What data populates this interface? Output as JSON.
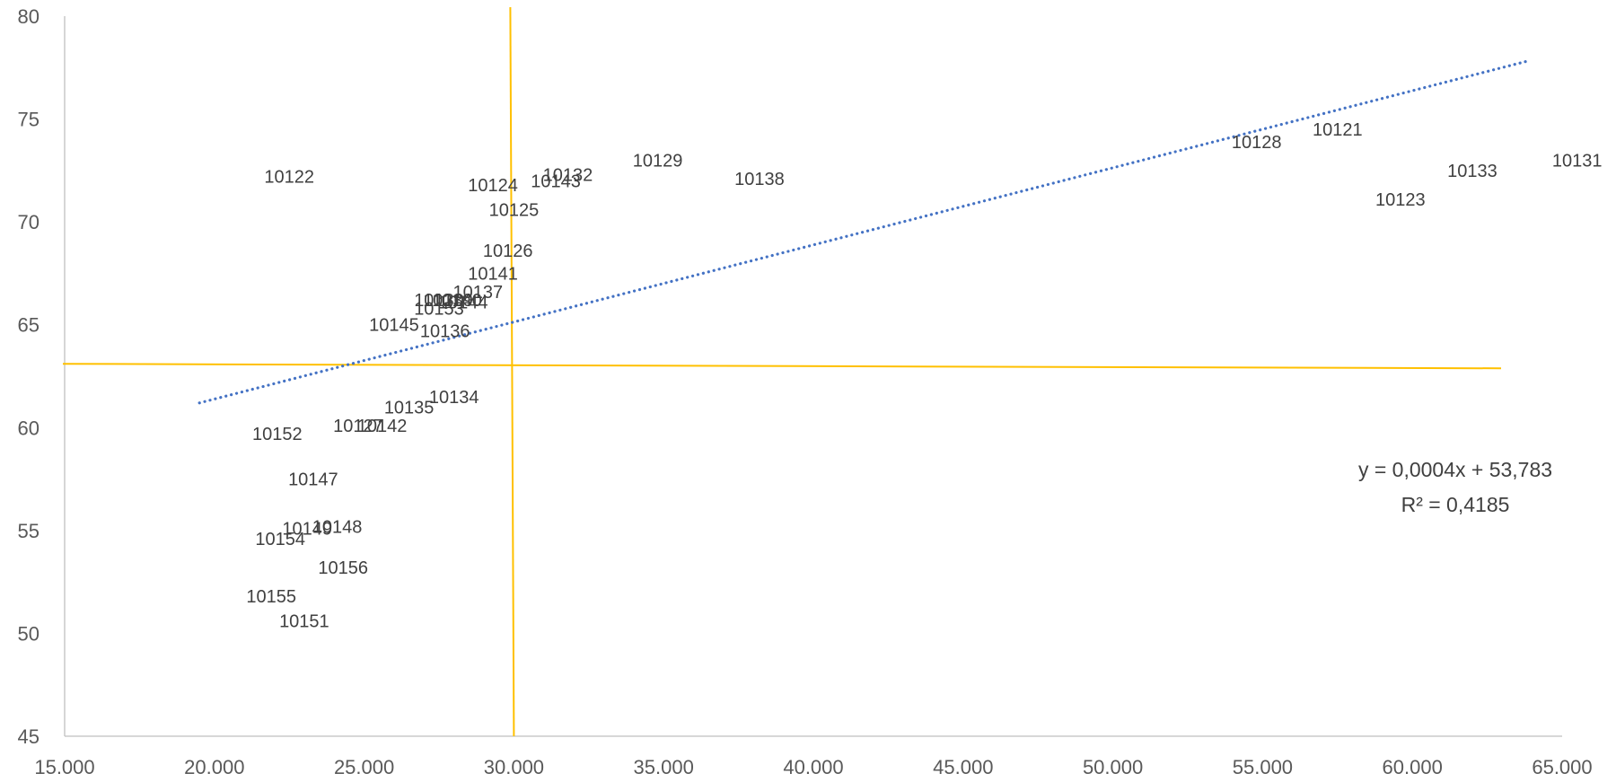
{
  "chart_data": {
    "type": "scatter",
    "title": "",
    "xlabel": "",
    "ylabel": "",
    "xlim": [
      15000,
      65000
    ],
    "ylim": [
      45,
      80
    ],
    "x_ticks": [
      "15.000",
      "20.000",
      "25.000",
      "30.000",
      "35.000",
      "40.000",
      "45.000",
      "50.000",
      "55.000",
      "60.000",
      "65.000"
    ],
    "y_ticks": [
      "45",
      "50",
      "55",
      "60",
      "65",
      "70",
      "75",
      "80"
    ],
    "gridlines": false,
    "markers_visible": false,
    "points": [
      {
        "label": "10122",
        "x": 22500,
        "y": 72.2
      },
      {
        "label": "10124",
        "x": 29300,
        "y": 71.8
      },
      {
        "label": "10132",
        "x": 31800,
        "y": 72.3
      },
      {
        "label": "10143",
        "x": 31400,
        "y": 72.0
      },
      {
        "label": "10129",
        "x": 34800,
        "y": 73.0
      },
      {
        "label": "10138",
        "x": 38200,
        "y": 72.1
      },
      {
        "label": "10125",
        "x": 30000,
        "y": 70.6
      },
      {
        "label": "10126",
        "x": 29800,
        "y": 68.6
      },
      {
        "label": "10141",
        "x": 29300,
        "y": 67.5
      },
      {
        "label": "10137",
        "x": 28800,
        "y": 66.6
      },
      {
        "label": "10130",
        "x": 27500,
        "y": 66.2
      },
      {
        "label": "10139",
        "x": 27800,
        "y": 66.2
      },
      {
        "label": "10140",
        "x": 28100,
        "y": 66.2
      },
      {
        "label": "10144",
        "x": 28300,
        "y": 66.1
      },
      {
        "label": "10153",
        "x": 27500,
        "y": 65.8
      },
      {
        "label": "10145",
        "x": 26000,
        "y": 65.0
      },
      {
        "label": "10136",
        "x": 27700,
        "y": 64.7
      },
      {
        "label": "10134",
        "x": 28000,
        "y": 61.5
      },
      {
        "label": "10135",
        "x": 26500,
        "y": 61.0
      },
      {
        "label": "10127",
        "x": 24800,
        "y": 60.1
      },
      {
        "label": "10142",
        "x": 25600,
        "y": 60.1
      },
      {
        "label": "10152",
        "x": 22100,
        "y": 59.7
      },
      {
        "label": "10147",
        "x": 23300,
        "y": 57.5
      },
      {
        "label": "10149",
        "x": 23100,
        "y": 55.1
      },
      {
        "label": "10148",
        "x": 24100,
        "y": 55.2
      },
      {
        "label": "10154",
        "x": 22200,
        "y": 54.6
      },
      {
        "label": "10156",
        "x": 24300,
        "y": 53.2
      },
      {
        "label": "10155",
        "x": 21900,
        "y": 51.8
      },
      {
        "label": "10151",
        "x": 23000,
        "y": 50.6
      },
      {
        "label": "10128",
        "x": 54800,
        "y": 73.9
      },
      {
        "label": "10121",
        "x": 57500,
        "y": 74.5
      },
      {
        "label": "10123",
        "x": 59600,
        "y": 71.1
      },
      {
        "label": "10133",
        "x": 62000,
        "y": 72.5
      },
      {
        "label": "10131",
        "x": 65500,
        "y": 73.0
      }
    ],
    "reference_lines": [
      {
        "orientation": "vertical",
        "x": 30000,
        "color": "#FFC000"
      },
      {
        "orientation": "horizontal",
        "y": 63.1,
        "color": "#FFC000"
      }
    ],
    "trendline": {
      "type": "linear",
      "style": "dotted",
      "color": "#4472C4",
      "slope": 0.0004,
      "intercept": 53.783,
      "x_range": [
        19500,
        63800
      ],
      "equation": "y = 0,0004x + 53,783",
      "r_squared": "R² = 0,4185"
    },
    "axis_color": "#BFBFBF",
    "text_color": "#595959"
  }
}
